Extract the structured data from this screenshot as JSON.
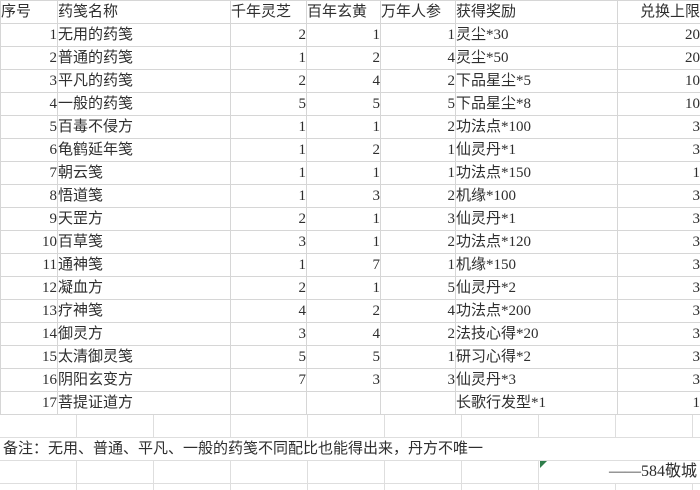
{
  "table": {
    "headers": [
      "序号",
      "药笺名称",
      "千年灵芝",
      "百年玄黄",
      "万年人参",
      "获得奖励",
      "兑换上限"
    ],
    "rows": [
      [
        "1",
        "无用的药笺",
        "2",
        "1",
        "1",
        "灵尘*30",
        "20"
      ],
      [
        "2",
        "普通的药笺",
        "1",
        "2",
        "4",
        "灵尘*50",
        "20"
      ],
      [
        "3",
        "平凡的药笺",
        "2",
        "4",
        "2",
        "下品星尘*5",
        "10"
      ],
      [
        "4",
        "一般的药笺",
        "5",
        "5",
        "5",
        "下品星尘*8",
        "10"
      ],
      [
        "5",
        "百毒不侵方",
        "1",
        "1",
        "2",
        "功法点*100",
        "3"
      ],
      [
        "6",
        "龟鹤延年笺",
        "1",
        "2",
        "1",
        "仙灵丹*1",
        "3"
      ],
      [
        "7",
        "朝云笺",
        "1",
        "1",
        "1",
        "功法点*150",
        "1"
      ],
      [
        "8",
        "悟道笺",
        "1",
        "3",
        "2",
        "机缘*100",
        "3"
      ],
      [
        "9",
        "天罡方",
        "2",
        "1",
        "3",
        "仙灵丹*1",
        "3"
      ],
      [
        "10",
        "百草笺",
        "3",
        "1",
        "2",
        "功法点*120",
        "3"
      ],
      [
        "11",
        "通神笺",
        "1",
        "7",
        "1",
        "机缘*150",
        "3"
      ],
      [
        "12",
        "凝血方",
        "2",
        "1",
        "5",
        "仙灵丹*2",
        "3"
      ],
      [
        "13",
        "疗神笺",
        "4",
        "2",
        "4",
        "功法点*200",
        "3"
      ],
      [
        "14",
        "御灵方",
        "3",
        "4",
        "2",
        "法技心得*20",
        "3"
      ],
      [
        "15",
        "太清御灵笺",
        "5",
        "5",
        "1",
        "研习心得*2",
        "3"
      ],
      [
        "16",
        "阴阳玄变方",
        "7",
        "3",
        "3",
        "仙灵丹*3",
        "3"
      ],
      [
        "17",
        "菩提证道方",
        "",
        "",
        "",
        "长歌行发型*1",
        "1"
      ]
    ]
  },
  "note": {
    "text": "备注：无用、普通、平凡、一般的药笺不同配比也能得出来，丹方不唯一"
  },
  "signature": {
    "text": "——584敬城"
  },
  "colors": {
    "gridline_table": "#d6d6d6",
    "gridline_default": "#dedede",
    "text": "#2e2e2e",
    "flag_green": "#2f7d4b"
  }
}
